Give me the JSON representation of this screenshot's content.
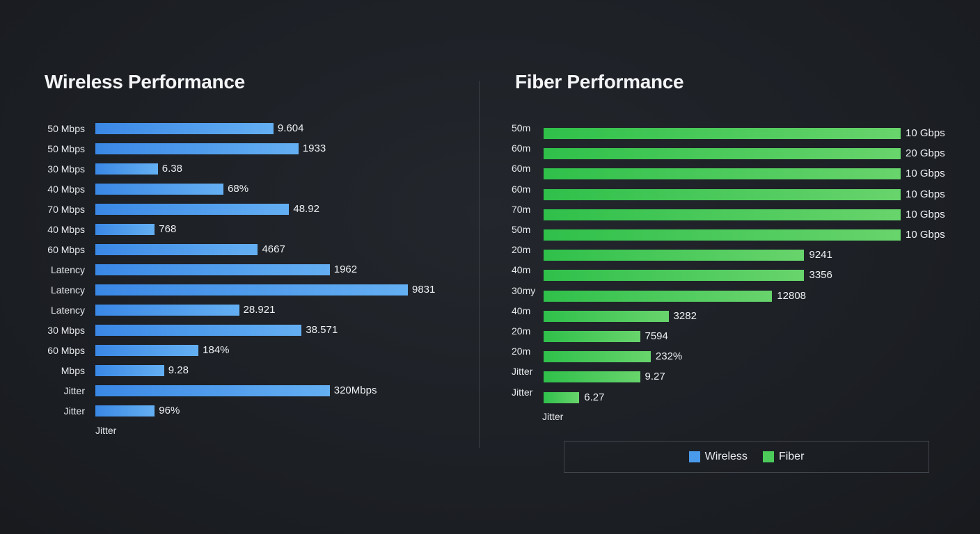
{
  "chart_data": [
    {
      "type": "bar",
      "orientation": "horizontal",
      "title": "Wireless Performance",
      "series_name": "Wireless",
      "color": "#4a9aec",
      "value_unit": "percent of longest bar",
      "categories": [
        "50 Mbps",
        "50 Mbps",
        "30 Mbps",
        "40 Mbps",
        "70 Mbps",
        "40 Mbps",
        "60 Mbps",
        "Latency",
        "Latency",
        "Latency",
        "30 Mbps",
        "60 Mbps",
        "Mbps",
        "Jitter",
        "Jitter"
      ],
      "values": [
        57,
        65,
        20,
        41,
        62,
        19,
        52,
        75,
        100,
        46,
        66,
        33,
        22,
        75,
        19
      ],
      "data_labels": [
        "9.604",
        "1933",
        "6.38",
        "68%",
        "48.92",
        "768",
        "4667",
        "1962",
        "9831",
        "28.921",
        "38.571",
        "184%",
        "9.28",
        "320Mbps",
        "96%"
      ],
      "axis_label": "Jitter"
    },
    {
      "type": "bar",
      "orientation": "horizontal",
      "title": "Fiber Performance",
      "series_name": "Fiber",
      "color": "#4ccb5a",
      "value_unit": "percent of longest bar",
      "categories": [
        "50m",
        "60m",
        "60m",
        "60m",
        "70m",
        "50m",
        "20m",
        "40m",
        "30my",
        "40m",
        "20m",
        "20m",
        "Jitter",
        "Jitter"
      ],
      "values": [
        100,
        100,
        100,
        100,
        100,
        100,
        73,
        73,
        64,
        35,
        27,
        30,
        27,
        10
      ],
      "data_labels": [
        "10 Gbps",
        "20 Gbps",
        "10 Gbps",
        "10 Gbps",
        "10 Gbps",
        "10 Gbps",
        "9241",
        "3356",
        "12808",
        "3282",
        "7594",
        "232%",
        "9.27",
        "6.27"
      ],
      "axis_label": "Jitter"
    }
  ],
  "legend": {
    "placement": "bottom-right",
    "items": [
      {
        "label": "Wireless",
        "color": "#4a9aec"
      },
      {
        "label": "Fiber",
        "color": "#4ccb5a"
      }
    ]
  }
}
